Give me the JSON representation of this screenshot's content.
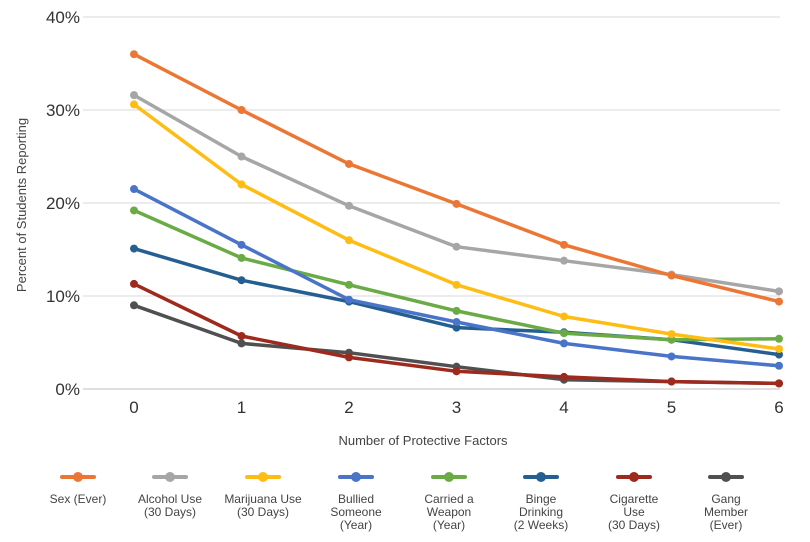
{
  "chart_data": {
    "type": "line",
    "title": "",
    "xlabel": "Number of Protective Factors",
    "ylabel": "Percent of Students Reporting",
    "x": [
      0,
      1,
      2,
      3,
      4,
      5,
      6
    ],
    "ylim": [
      0,
      40
    ],
    "yticks": [
      0,
      10,
      20,
      30,
      40
    ],
    "ytick_labels": [
      "0%",
      "10%",
      "20%",
      "30%",
      "40%"
    ],
    "xtick_labels": [
      "0",
      "1",
      "2",
      "3",
      "4",
      "5",
      "6"
    ],
    "grid": "horizontal",
    "legend_position": "bottom",
    "series": [
      {
        "name": "Sex (Ever)",
        "legend_lines": [
          "Sex (Ever)"
        ],
        "color": "#ec7735",
        "values": [
          36,
          30,
          24.2,
          19.9,
          15.5,
          12.2,
          9.4
        ]
      },
      {
        "name": "Alcohol Use (30 Days)",
        "legend_lines": [
          "Alcohol Use",
          "(30 Days)"
        ],
        "color": "#a6a6a6",
        "values": [
          31.6,
          25,
          19.7,
          15.3,
          13.8,
          12.3,
          10.5
        ]
      },
      {
        "name": "Marijuana Use (30 Days)",
        "legend_lines": [
          "Marijuana Use",
          "(30 Days)"
        ],
        "color": "#ffbd14",
        "values": [
          30.6,
          22,
          16,
          11.2,
          7.8,
          5.9,
          4.3
        ]
      },
      {
        "name": "Bullied Someone (Year)",
        "legend_lines": [
          "Bullied",
          "Someone",
          "(Year)"
        ],
        "color": "#4a74c8",
        "values": [
          21.5,
          15.5,
          9.6,
          7.2,
          4.9,
          3.5,
          2.5
        ]
      },
      {
        "name": "Carried a Weapon (Year)",
        "legend_lines": [
          "Carried a",
          "Weapon",
          "(Year)"
        ],
        "color": "#6aab46",
        "values": [
          19.2,
          14.1,
          11.2,
          8.4,
          6,
          5.3,
          5.4
        ]
      },
      {
        "name": "Binge Drinking (2 Weeks)",
        "legend_lines": [
          "Binge",
          "Drinking",
          "(2 Weeks)"
        ],
        "color": "#255f91",
        "values": [
          15.1,
          11.7,
          9.4,
          6.6,
          6.1,
          5.3,
          3.7
        ]
      },
      {
        "name": "Cigarette Use (30 Days)",
        "legend_lines": [
          "Cigarette",
          "Use",
          "(30 Days)"
        ],
        "color": "#9e2a1e",
        "values": [
          11.3,
          5.7,
          3.4,
          1.9,
          1.3,
          0.8,
          0.6
        ]
      },
      {
        "name": "Gang Member (Ever)",
        "legend_lines": [
          "Gang",
          "Member",
          "(Ever)"
        ],
        "color": "#505050",
        "values": [
          9,
          4.9,
          3.9,
          2.4,
          1,
          0.8,
          0.6
        ]
      }
    ],
    "draw_order": [
      7,
      6,
      5,
      4,
      3,
      2,
      1,
      0
    ]
  }
}
